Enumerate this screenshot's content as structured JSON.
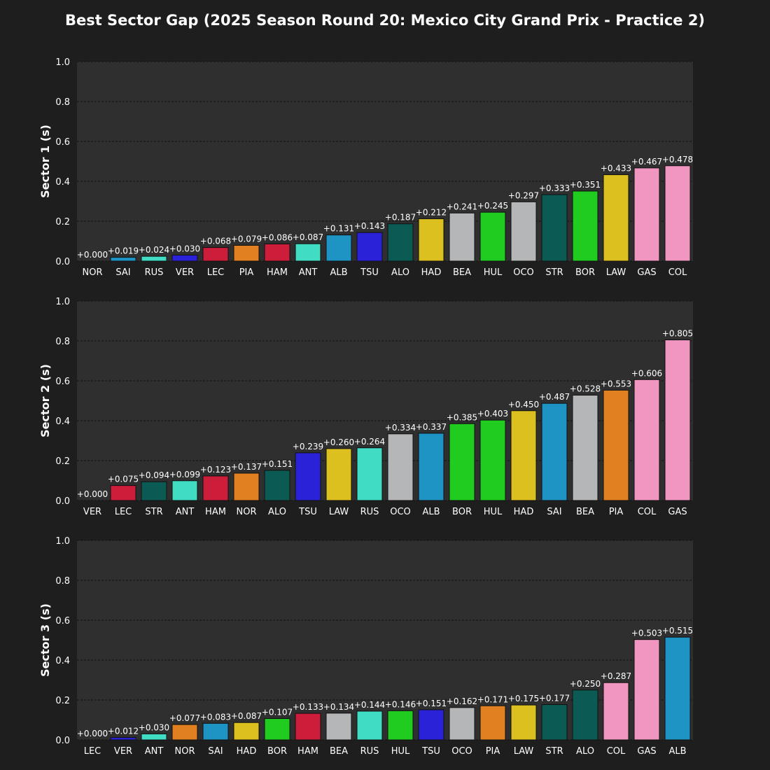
{
  "title": "Best Sector Gap (2025 Season Round 20: Mexico City Grand Prix - Practice 2)",
  "colors": {
    "figure_background": "#1e1e1e",
    "axes_background": "#2f2f2f",
    "grid": "#111111",
    "text": "#ffffff",
    "bar_edge": "#111111"
  },
  "team_colors": {
    "NOR": "#e08020",
    "PIA": "#e08020",
    "LEC": "#cc1e3a",
    "HAM": "#cc1e3a",
    "VER": "#2a22d8",
    "TSU": "#2a22d8",
    "RUS": "#40dcc4",
    "ANT": "#40dcc4",
    "SAI": "#1e94c4",
    "ALB": "#1e94c4",
    "ALO": "#0c5a54",
    "STR": "#0c5a54",
    "HAD": "#dcc020",
    "LAW": "#dcc020",
    "BEA": "#b4b6b8",
    "OCO": "#b4b6b8",
    "HUL": "#20cc20",
    "BOR": "#20cc20",
    "GAS": "#f096c0",
    "COL": "#f096c0"
  },
  "chart_data": [
    {
      "type": "bar",
      "ylabel": "Sector 1 (s)",
      "ylim": [
        0,
        1.0
      ],
      "yticks": [
        "0.0",
        "0.2",
        "0.4",
        "0.6",
        "0.8",
        "1.0"
      ],
      "grid": true,
      "categories": [
        "NOR",
        "SAI",
        "RUS",
        "VER",
        "LEC",
        "PIA",
        "HAM",
        "ANT",
        "ALB",
        "TSU",
        "ALO",
        "HAD",
        "BEA",
        "HUL",
        "OCO",
        "STR",
        "BOR",
        "LAW",
        "GAS",
        "COL"
      ],
      "values": [
        0.0,
        0.019,
        0.024,
        0.03,
        0.068,
        0.079,
        0.086,
        0.087,
        0.131,
        0.143,
        0.187,
        0.212,
        0.241,
        0.245,
        0.297,
        0.333,
        0.351,
        0.433,
        0.467,
        0.478
      ],
      "data_labels": [
        "+0.000",
        "+0.019",
        "+0.024",
        "+0.030",
        "+0.068",
        "+0.079",
        "+0.086",
        "+0.087",
        "+0.131",
        "+0.143",
        "+0.187",
        "+0.212",
        "+0.241",
        "+0.245",
        "+0.297",
        "+0.333",
        "+0.351",
        "+0.433",
        "+0.467",
        "+0.478"
      ]
    },
    {
      "type": "bar",
      "ylabel": "Sector 2 (s)",
      "ylim": [
        0,
        1.0
      ],
      "yticks": [
        "0.0",
        "0.2",
        "0.4",
        "0.6",
        "0.8",
        "1.0"
      ],
      "grid": true,
      "categories": [
        "VER",
        "LEC",
        "STR",
        "ANT",
        "HAM",
        "NOR",
        "ALO",
        "TSU",
        "LAW",
        "RUS",
        "OCO",
        "ALB",
        "BOR",
        "HUL",
        "HAD",
        "SAI",
        "BEA",
        "PIA",
        "COL",
        "GAS"
      ],
      "values": [
        0.0,
        0.075,
        0.094,
        0.099,
        0.123,
        0.137,
        0.151,
        0.239,
        0.26,
        0.264,
        0.334,
        0.337,
        0.385,
        0.403,
        0.45,
        0.487,
        0.528,
        0.553,
        0.606,
        0.805
      ],
      "data_labels": [
        "+0.000",
        "+0.075",
        "+0.094",
        "+0.099",
        "+0.123",
        "+0.137",
        "+0.151",
        "+0.239",
        "+0.260",
        "+0.264",
        "+0.334",
        "+0.337",
        "+0.385",
        "+0.403",
        "+0.450",
        "+0.487",
        "+0.528",
        "+0.553",
        "+0.606",
        "+0.805"
      ]
    },
    {
      "type": "bar",
      "ylabel": "Sector 3 (s)",
      "ylim": [
        0,
        1.0
      ],
      "yticks": [
        "0.0",
        "0.2",
        "0.4",
        "0.6",
        "0.8",
        "1.0"
      ],
      "grid": true,
      "categories": [
        "LEC",
        "VER",
        "ANT",
        "NOR",
        "SAI",
        "HAD",
        "BOR",
        "HAM",
        "BEA",
        "RUS",
        "HUL",
        "TSU",
        "OCO",
        "PIA",
        "LAW",
        "STR",
        "ALO",
        "COL",
        "GAS",
        "ALB"
      ],
      "values": [
        0.0,
        0.012,
        0.03,
        0.077,
        0.083,
        0.087,
        0.107,
        0.133,
        0.134,
        0.144,
        0.146,
        0.151,
        0.162,
        0.171,
        0.175,
        0.177,
        0.25,
        0.287,
        0.503,
        0.515
      ],
      "data_labels": [
        "+0.000",
        "+0.012",
        "+0.030",
        "+0.077",
        "+0.083",
        "+0.087",
        "+0.107",
        "+0.133",
        "+0.134",
        "+0.144",
        "+0.146",
        "+0.151",
        "+0.162",
        "+0.171",
        "+0.175",
        "+0.177",
        "+0.250",
        "+0.287",
        "+0.503",
        "+0.515"
      ]
    }
  ]
}
